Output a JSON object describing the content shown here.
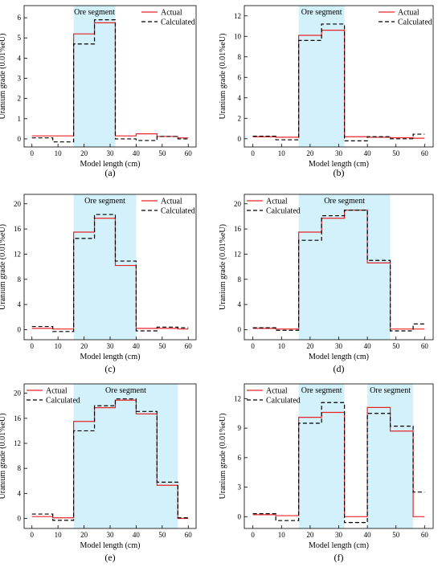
{
  "chart_data": [
    {
      "type": "line",
      "panel_label": "(a)",
      "xlabel": "Model length (cm)",
      "ylabel": "Uranium grade (0.01%eU)",
      "xlim": [
        -3,
        63
      ],
      "ylim": [
        -0.4,
        6.6
      ],
      "xticks": [
        0,
        10,
        20,
        30,
        40,
        50,
        60
      ],
      "yticks": [
        0,
        1,
        2,
        3,
        4,
        5,
        6
      ],
      "grid": false,
      "legend_position": "top-right",
      "annotation": "Ore segment",
      "ore_segments": [
        [
          16,
          32
        ]
      ],
      "series": [
        {
          "name": "Actual",
          "style": "solid",
          "color": "#e8242a",
          "steps": [
            [
              0,
              8,
              0.15
            ],
            [
              8,
              16,
              0.15
            ],
            [
              16,
              24,
              5.2
            ],
            [
              24,
              32,
              5.75
            ],
            [
              32,
              40,
              0.15
            ],
            [
              40,
              48,
              0.25
            ],
            [
              48,
              56,
              0.12
            ],
            [
              56,
              60,
              0.05
            ]
          ]
        },
        {
          "name": "Calculated",
          "style": "dashed",
          "color": "#000000",
          "steps": [
            [
              0,
              8,
              0.05
            ],
            [
              8,
              16,
              -0.15
            ],
            [
              16,
              24,
              4.7
            ],
            [
              24,
              32,
              5.9
            ],
            [
              32,
              40,
              0.0
            ],
            [
              40,
              48,
              -0.08
            ],
            [
              48,
              56,
              0.12
            ],
            [
              56,
              60,
              0.0
            ]
          ]
        }
      ]
    },
    {
      "type": "line",
      "panel_label": "(b)",
      "xlabel": "Model length (cm)",
      "ylabel": "Uranium grade (0.01%eU)",
      "xlim": [
        -3,
        63
      ],
      "ylim": [
        -0.8,
        13
      ],
      "xticks": [
        0,
        10,
        20,
        30,
        40,
        50,
        60
      ],
      "yticks": [
        0,
        2,
        4,
        6,
        8,
        10,
        12
      ],
      "grid": false,
      "legend_position": "top-right",
      "annotation": "Ore segment",
      "ore_segments": [
        [
          16,
          32
        ]
      ],
      "series": [
        {
          "name": "Actual",
          "style": "solid",
          "color": "#e8242a",
          "steps": [
            [
              0,
              8,
              0.2
            ],
            [
              8,
              16,
              0.15
            ],
            [
              16,
              24,
              10.1
            ],
            [
              24,
              32,
              10.6
            ],
            [
              32,
              40,
              0.2
            ],
            [
              40,
              48,
              0.15
            ],
            [
              48,
              56,
              0.1
            ],
            [
              56,
              60,
              0.05
            ]
          ]
        },
        {
          "name": "Calculated",
          "style": "dashed",
          "color": "#000000",
          "steps": [
            [
              0,
              8,
              0.25
            ],
            [
              8,
              16,
              -0.1
            ],
            [
              16,
              24,
              9.6
            ],
            [
              24,
              32,
              11.2
            ],
            [
              32,
              40,
              -0.2
            ],
            [
              40,
              48,
              0.2
            ],
            [
              48,
              56,
              0.0
            ],
            [
              56,
              60,
              0.45
            ]
          ]
        }
      ]
    },
    {
      "type": "line",
      "panel_label": "(c)",
      "xlabel": "Model length (cm)",
      "ylabel": "Uranium grade (0.01%eU)",
      "xlim": [
        -3,
        63
      ],
      "ylim": [
        -1.6,
        21.5
      ],
      "xticks": [
        0,
        10,
        20,
        30,
        40,
        50,
        60
      ],
      "yticks": [
        0,
        4,
        8,
        12,
        16,
        20
      ],
      "grid": false,
      "legend_position": "top-right",
      "annotation": "Ore segment",
      "ore_segments": [
        [
          16,
          40
        ]
      ],
      "series": [
        {
          "name": "Actual",
          "style": "solid",
          "color": "#e8242a",
          "steps": [
            [
              0,
              8,
              0.2
            ],
            [
              8,
              16,
              0.1
            ],
            [
              16,
              24,
              15.5
            ],
            [
              24,
              32,
              17.7
            ],
            [
              32,
              40,
              10.2
            ],
            [
              40,
              48,
              0.2
            ],
            [
              48,
              56,
              0.2
            ],
            [
              56,
              60,
              0.1
            ]
          ]
        },
        {
          "name": "Calculated",
          "style": "dashed",
          "color": "#000000",
          "steps": [
            [
              0,
              8,
              0.5
            ],
            [
              8,
              16,
              -0.3
            ],
            [
              16,
              24,
              14.5
            ],
            [
              24,
              32,
              18.3
            ],
            [
              32,
              40,
              10.9
            ],
            [
              40,
              48,
              -0.2
            ],
            [
              48,
              56,
              0.4
            ],
            [
              56,
              60,
              0.3
            ]
          ]
        }
      ]
    },
    {
      "type": "line",
      "panel_label": "(d)",
      "xlabel": "Model length (cm)",
      "ylabel": "Uranium grade (0.01%eU)",
      "xlim": [
        -3,
        63
      ],
      "ylim": [
        -1.6,
        21.5
      ],
      "xticks": [
        0,
        10,
        20,
        30,
        40,
        50,
        60
      ],
      "yticks": [
        0,
        4,
        8,
        12,
        16,
        20
      ],
      "grid": false,
      "legend_position": "top-left",
      "annotation": "Ore segment",
      "ore_segments": [
        [
          16,
          48
        ]
      ],
      "series": [
        {
          "name": "Actual",
          "style": "solid",
          "color": "#e8242a",
          "steps": [
            [
              0,
              8,
              0.2
            ],
            [
              8,
              16,
              0.1
            ],
            [
              16,
              24,
              15.5
            ],
            [
              24,
              32,
              17.7
            ],
            [
              32,
              40,
              19.0
            ],
            [
              40,
              48,
              10.6
            ],
            [
              48,
              56,
              0.1
            ],
            [
              56,
              60,
              0.1
            ]
          ]
        },
        {
          "name": "Calculated",
          "style": "dashed",
          "color": "#000000",
          "steps": [
            [
              0,
              8,
              0.3
            ],
            [
              8,
              16,
              -0.1
            ],
            [
              16,
              24,
              14.2
            ],
            [
              24,
              32,
              18.1
            ],
            [
              32,
              40,
              19.0
            ],
            [
              40,
              48,
              11.0
            ],
            [
              48,
              56,
              -0.2
            ],
            [
              56,
              60,
              0.9
            ]
          ]
        }
      ]
    },
    {
      "type": "line",
      "panel_label": "(e)",
      "xlabel": "Model length (cm)",
      "ylabel": "Uranium grade (0.01%eU)",
      "xlim": [
        -3,
        63
      ],
      "ylim": [
        -1.6,
        21.5
      ],
      "xticks": [
        0,
        10,
        20,
        30,
        40,
        50,
        60
      ],
      "yticks": [
        0,
        4,
        8,
        12,
        16,
        20
      ],
      "grid": false,
      "legend_position": "top-left",
      "annotation": "Ore segment",
      "ore_segments": [
        [
          16,
          56
        ]
      ],
      "series": [
        {
          "name": "Actual",
          "style": "solid",
          "color": "#e8242a",
          "steps": [
            [
              0,
              8,
              0.3
            ],
            [
              8,
              16,
              0.1
            ],
            [
              16,
              24,
              15.5
            ],
            [
              24,
              32,
              17.7
            ],
            [
              32,
              40,
              18.9
            ],
            [
              40,
              48,
              16.7
            ],
            [
              48,
              56,
              5.3
            ],
            [
              56,
              60,
              0.0
            ]
          ]
        },
        {
          "name": "Calculated",
          "style": "dashed",
          "color": "#000000",
          "steps": [
            [
              0,
              8,
              0.7
            ],
            [
              8,
              16,
              -0.3
            ],
            [
              16,
              24,
              14.0
            ],
            [
              24,
              32,
              18.0
            ],
            [
              32,
              40,
              19.1
            ],
            [
              40,
              48,
              17.1
            ],
            [
              48,
              56,
              5.8
            ],
            [
              56,
              60,
              0.1
            ]
          ]
        }
      ]
    },
    {
      "type": "line",
      "panel_label": "(f)",
      "xlabel": "Model length (cm)",
      "ylabel": "Uranium grade (0.01%eU)",
      "xlim": [
        -3,
        63
      ],
      "ylim": [
        -1.2,
        13.5
      ],
      "xticks": [
        0,
        10,
        20,
        30,
        40,
        50,
        60
      ],
      "yticks": [
        0,
        3,
        6,
        9,
        12
      ],
      "grid": false,
      "legend_position": "top-left",
      "annotation": "Ore segment",
      "ore_segments": [
        [
          16,
          32
        ],
        [
          40,
          56
        ]
      ],
      "series": [
        {
          "name": "Actual",
          "style": "solid",
          "color": "#e8242a",
          "steps": [
            [
              0,
              8,
              0.2
            ],
            [
              8,
              16,
              0.1
            ],
            [
              16,
              24,
              10.1
            ],
            [
              24,
              32,
              10.6
            ],
            [
              32,
              40,
              0.0
            ],
            [
              40,
              48,
              11.1
            ],
            [
              48,
              56,
              8.7
            ],
            [
              56,
              60,
              0.0
            ]
          ]
        },
        {
          "name": "Calculated",
          "style": "dashed",
          "color": "#000000",
          "steps": [
            [
              0,
              8,
              0.3
            ],
            [
              8,
              16,
              -0.4
            ],
            [
              16,
              24,
              9.5
            ],
            [
              24,
              32,
              11.6
            ],
            [
              32,
              40,
              -0.6
            ],
            [
              40,
              48,
              10.5
            ],
            [
              48,
              56,
              9.2
            ],
            [
              56,
              60,
              2.5
            ]
          ]
        }
      ]
    }
  ],
  "colors": {
    "actual": "#e8242a",
    "calculated": "#000000",
    "ore_fill": "#d3f1fa",
    "axis": "#000000"
  }
}
